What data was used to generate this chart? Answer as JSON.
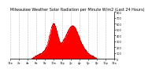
{
  "title": "Milwaukee Weather Solar Radiation per Minute W/m2 (Last 24 Hours)",
  "title_fontsize": 3.5,
  "background_color": "#ffffff",
  "plot_bg_color": "#ffffff",
  "fill_color": "#ff0000",
  "line_color": "#cc0000",
  "grid_color": "#bbbbbb",
  "ylim": [
    0,
    800
  ],
  "yticks": [
    0,
    100,
    200,
    300,
    400,
    500,
    600,
    700,
    800
  ],
  "tick_fontsize": 2.5,
  "num_points": 1440,
  "xlim": [
    0,
    24
  ],
  "xtick_hours": [
    0,
    2,
    4,
    6,
    8,
    10,
    12,
    14,
    16,
    18,
    20,
    22,
    24
  ]
}
